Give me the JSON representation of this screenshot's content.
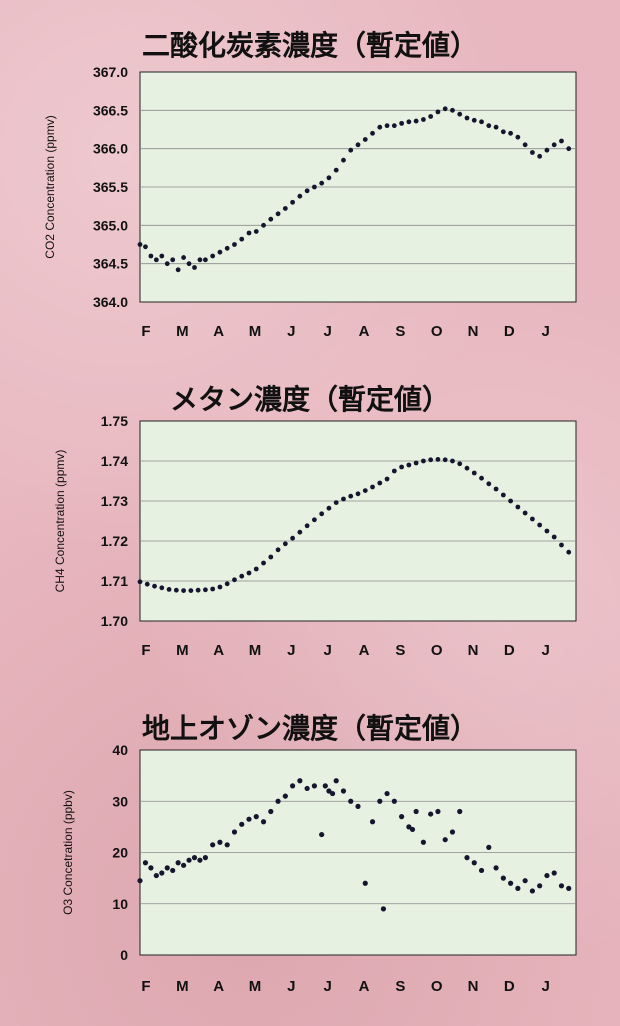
{
  "background_color": "#e8b7bf",
  "plot_background_color": "#e7f1e1",
  "point_color": "#15152e",
  "chart_data": [
    {
      "type": "scatter",
      "title": "二酸化炭素濃度（暫定値）",
      "ylabel": "CO2 Concentration (ppmv)",
      "x_tick_labels": [
        "F",
        "M",
        "A",
        "M",
        "J",
        "J",
        "A",
        "S",
        "O",
        "N",
        "D",
        "J"
      ],
      "y_ticks": [
        364.0,
        364.5,
        365.0,
        365.5,
        366.0,
        366.5,
        367.0
      ],
      "y_tick_labels": [
        "364.0",
        "364.5",
        "365.0",
        "365.5",
        "366.0",
        "366.5",
        "367.0"
      ],
      "ylim": [
        364.0,
        367.0
      ],
      "xlim": [
        0,
        12
      ],
      "grid": true,
      "x": [
        0.0,
        0.15,
        0.3,
        0.45,
        0.6,
        0.75,
        0.9,
        1.05,
        1.2,
        1.35,
        1.5,
        1.65,
        1.8,
        2.0,
        2.2,
        2.4,
        2.6,
        2.8,
        3.0,
        3.2,
        3.4,
        3.6,
        3.8,
        4.0,
        4.2,
        4.4,
        4.6,
        4.8,
        5.0,
        5.2,
        5.4,
        5.6,
        5.8,
        6.0,
        6.2,
        6.4,
        6.6,
        6.8,
        7.0,
        7.2,
        7.4,
        7.6,
        7.8,
        8.0,
        8.2,
        8.4,
        8.6,
        8.8,
        9.0,
        9.2,
        9.4,
        9.6,
        9.8,
        10.0,
        10.2,
        10.4,
        10.6,
        10.8,
        11.0,
        11.2,
        11.4,
        11.6,
        11.8
      ],
      "y": [
        364.75,
        364.72,
        364.6,
        364.55,
        364.6,
        364.5,
        364.55,
        364.42,
        364.58,
        364.5,
        364.45,
        364.55,
        364.55,
        364.6,
        364.65,
        364.7,
        364.75,
        364.82,
        364.9,
        364.92,
        365.0,
        365.08,
        365.15,
        365.22,
        365.3,
        365.38,
        365.45,
        365.5,
        365.55,
        365.62,
        365.72,
        365.85,
        365.98,
        366.05,
        366.12,
        366.2,
        366.28,
        366.3,
        366.3,
        366.33,
        366.35,
        366.36,
        366.38,
        366.42,
        366.48,
        366.52,
        366.5,
        366.45,
        366.4,
        366.37,
        366.35,
        366.3,
        366.28,
        366.22,
        366.2,
        366.15,
        366.05,
        365.95,
        365.9,
        365.98,
        366.05,
        366.1,
        366.0
      ]
    },
    {
      "type": "scatter",
      "title": "メタン濃度（暫定値）",
      "ylabel": "CH4 Concentration (ppmv)",
      "x_tick_labels": [
        "F",
        "M",
        "A",
        "M",
        "J",
        "J",
        "A",
        "S",
        "O",
        "N",
        "D",
        "J"
      ],
      "y_ticks": [
        1.7,
        1.71,
        1.72,
        1.73,
        1.74,
        1.75
      ],
      "y_tick_labels": [
        "1.70",
        "1.71",
        "1.72",
        "1.73",
        "1.74",
        "1.75"
      ],
      "ylim": [
        1.7,
        1.75
      ],
      "xlim": [
        0,
        12
      ],
      "grid": true,
      "x": [
        0.0,
        0.2,
        0.4,
        0.6,
        0.8,
        1.0,
        1.2,
        1.4,
        1.6,
        1.8,
        2.0,
        2.2,
        2.4,
        2.6,
        2.8,
        3.0,
        3.2,
        3.4,
        3.6,
        3.8,
        4.0,
        4.2,
        4.4,
        4.6,
        4.8,
        5.0,
        5.2,
        5.4,
        5.6,
        5.8,
        6.0,
        6.2,
        6.4,
        6.6,
        6.8,
        7.0,
        7.2,
        7.4,
        7.6,
        7.8,
        8.0,
        8.2,
        8.4,
        8.6,
        8.8,
        9.0,
        9.2,
        9.4,
        9.6,
        9.8,
        10.0,
        10.2,
        10.4,
        10.6,
        10.8,
        11.0,
        11.2,
        11.4,
        11.6,
        11.8
      ],
      "y": [
        1.7098,
        1.7092,
        1.7087,
        1.7083,
        1.7079,
        1.7077,
        1.7076,
        1.7076,
        1.7077,
        1.7078,
        1.708,
        1.7085,
        1.7093,
        1.7103,
        1.7112,
        1.712,
        1.713,
        1.7145,
        1.716,
        1.7178,
        1.7193,
        1.7207,
        1.7222,
        1.7238,
        1.7253,
        1.7268,
        1.7282,
        1.7296,
        1.7305,
        1.7312,
        1.7318,
        1.7326,
        1.7335,
        1.7345,
        1.7355,
        1.7375,
        1.7385,
        1.739,
        1.7395,
        1.74,
        1.7403,
        1.7404,
        1.7403,
        1.74,
        1.7393,
        1.7382,
        1.737,
        1.7357,
        1.7343,
        1.733,
        1.7315,
        1.73,
        1.7285,
        1.727,
        1.7255,
        1.724,
        1.7225,
        1.721,
        1.719,
        1.7172
      ]
    },
    {
      "type": "scatter",
      "title": "地上オゾン濃度（暫定値）",
      "ylabel": "O3 Concetration (ppbv)",
      "x_tick_labels": [
        "F",
        "M",
        "A",
        "M",
        "J",
        "J",
        "A",
        "S",
        "O",
        "N",
        "D",
        "J"
      ],
      "y_ticks": [
        0,
        10,
        20,
        30,
        40
      ],
      "y_tick_labels": [
        "0",
        "10",
        "20",
        "30",
        "40"
      ],
      "ylim": [
        0,
        40
      ],
      "xlim": [
        0,
        12
      ],
      "grid": true,
      "x": [
        0.0,
        0.15,
        0.3,
        0.45,
        0.6,
        0.75,
        0.9,
        1.05,
        1.2,
        1.35,
        1.5,
        1.65,
        1.8,
        2.0,
        2.2,
        2.4,
        2.6,
        2.8,
        3.0,
        3.2,
        3.4,
        3.6,
        3.8,
        4.0,
        4.2,
        4.4,
        4.6,
        4.8,
        5.0,
        5.1,
        5.2,
        5.3,
        5.4,
        5.6,
        5.8,
        6.0,
        6.2,
        6.4,
        6.6,
        6.7,
        6.8,
        7.0,
        7.2,
        7.4,
        7.5,
        7.6,
        7.8,
        8.0,
        8.2,
        8.4,
        8.6,
        8.8,
        9.0,
        9.2,
        9.4,
        9.6,
        9.8,
        10.0,
        10.2,
        10.4,
        10.6,
        10.8,
        11.0,
        11.2,
        11.4,
        11.6,
        11.8
      ],
      "y": [
        14.5,
        18.0,
        17.0,
        15.5,
        16.0,
        17.0,
        16.5,
        18.0,
        17.5,
        18.5,
        19.0,
        18.5,
        19.0,
        21.5,
        22.0,
        21.5,
        24.0,
        25.5,
        26.5,
        27.0,
        26.0,
        28.0,
        30.0,
        31.0,
        33.0,
        34.0,
        32.5,
        33.0,
        23.5,
        33.0,
        32.0,
        31.5,
        34.0,
        32.0,
        30.0,
        29.0,
        14.0,
        26.0,
        30.0,
        9.0,
        31.5,
        30.0,
        27.0,
        25.0,
        24.5,
        28.0,
        22.0,
        27.5,
        28.0,
        22.5,
        24.0,
        28.0,
        19.0,
        18.0,
        16.5,
        21.0,
        17.0,
        15.0,
        14.0,
        13.0,
        14.5,
        12.5,
        13.5,
        15.5,
        16.0,
        13.5,
        13.0
      ]
    }
  ]
}
